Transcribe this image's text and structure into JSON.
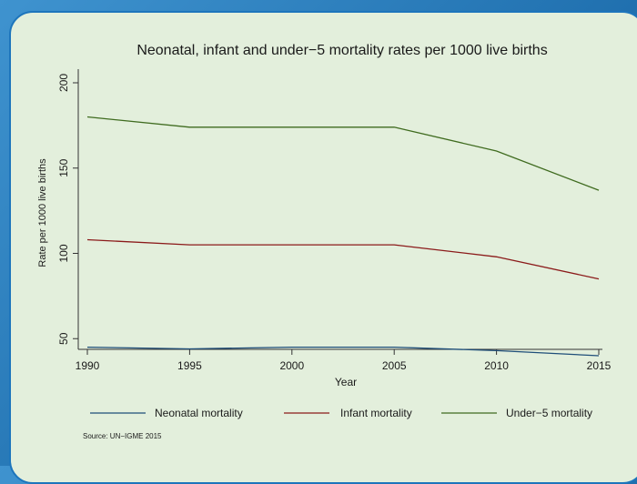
{
  "chart_data": {
    "type": "line",
    "title": "Neonatal, infant and under−5 mortality rates per 1000 live births",
    "xlabel": "Year",
    "ylabel": "Rate per 1000 live births",
    "x": [
      1990,
      1995,
      2000,
      2005,
      2010,
      2015
    ],
    "xticks": [
      "1990",
      "1995",
      "2000",
      "2005",
      "2010",
      "2015"
    ],
    "yticks": [
      "50",
      "100",
      "150",
      "200"
    ],
    "xlim": [
      1990,
      2015
    ],
    "ylim": [
      40,
      200
    ],
    "grid": false,
    "legend_position": "bottom",
    "series": [
      {
        "name": "Neonatal mortality",
        "color": "#1f4e79",
        "values": [
          45,
          44,
          45,
          45,
          43,
          40
        ]
      },
      {
        "name": "Infant mortality",
        "color": "#8b1a1a",
        "values": [
          108,
          105,
          105,
          105,
          98,
          85
        ]
      },
      {
        "name": "Under−5 mortality",
        "color": "#3f6b1f",
        "values": [
          180,
          174,
          174,
          174,
          160,
          137
        ]
      }
    ],
    "source": "Source: UN−IGME 2015"
  }
}
